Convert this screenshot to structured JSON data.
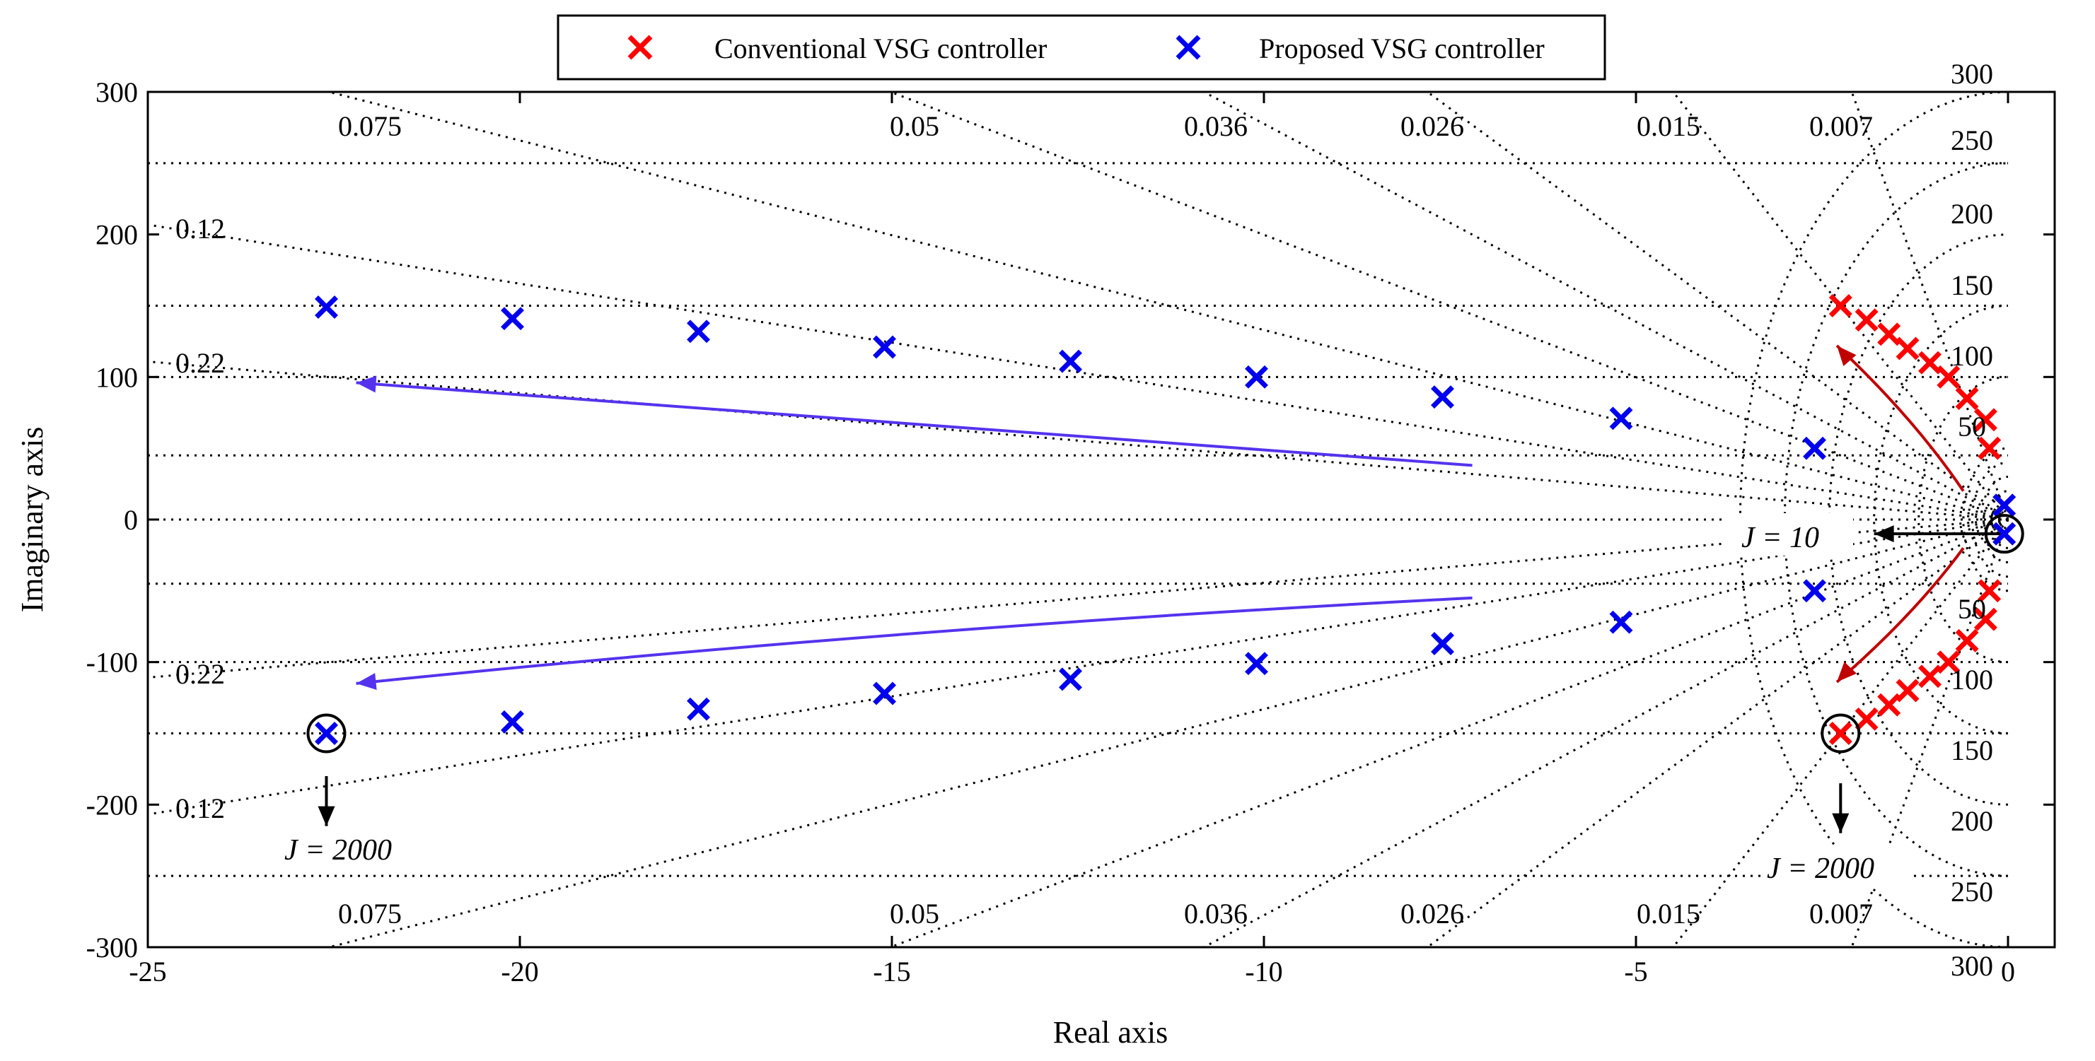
{
  "chart_data": {
    "type": "scatter",
    "title": "",
    "xlabel": "Real axis",
    "ylabel": "Imaginary axis",
    "xlim": [
      -25,
      1.2
    ],
    "ylim": [
      -300,
      300
    ],
    "x_ticks": [
      -25,
      -20,
      -15,
      -10,
      -5,
      0
    ],
    "y_ticks": [
      -300,
      -200,
      -100,
      0,
      100,
      200,
      300
    ],
    "x_tick_labels": [
      "-25",
      "-20",
      "-15",
      "-10",
      "-5",
      "0"
    ],
    "y_tick_labels": [
      "-300",
      "-200",
      "-100",
      "0",
      "100",
      "200",
      "300"
    ],
    "grid": "pzmap (damping ratio and natural frequency)",
    "legend": {
      "placement": "top-center",
      "entries": [
        {
          "name": "Conventional VSG controller",
          "color": "#ff0000",
          "marker": "x"
        },
        {
          "name": "Proposed VSG controller",
          "color": "#0000ee",
          "marker": "x"
        }
      ]
    },
    "series": [
      {
        "name": "Conventional VSG controller",
        "color": "#ff0000",
        "marker": "x",
        "points": [
          [
            -0.05,
            10
          ],
          [
            -0.05,
            -10
          ],
          [
            -0.25,
            50
          ],
          [
            -0.3,
            70
          ],
          [
            -0.55,
            85
          ],
          [
            -0.8,
            100
          ],
          [
            -1.05,
            110
          ],
          [
            -1.35,
            120
          ],
          [
            -1.6,
            130
          ],
          [
            -1.9,
            140
          ],
          [
            -2.25,
            150
          ],
          [
            -0.25,
            -50
          ],
          [
            -0.3,
            -70
          ],
          [
            -0.55,
            -85
          ],
          [
            -0.8,
            -100
          ],
          [
            -1.05,
            -110
          ],
          [
            -1.35,
            -120
          ],
          [
            -1.6,
            -130
          ],
          [
            -1.9,
            -140
          ],
          [
            -2.25,
            -150
          ]
        ]
      },
      {
        "name": "Proposed VSG controller",
        "color": "#0000ee",
        "marker": "x",
        "points": [
          [
            -0.05,
            10
          ],
          [
            -0.05,
            -10
          ],
          [
            -2.6,
            50
          ],
          [
            -5.2,
            71
          ],
          [
            -7.6,
            86
          ],
          [
            -10.1,
            100
          ],
          [
            -12.6,
            111
          ],
          [
            -15.1,
            121
          ],
          [
            -17.6,
            132
          ],
          [
            -20.1,
            141
          ],
          [
            -22.6,
            149
          ],
          [
            -2.6,
            -50
          ],
          [
            -5.2,
            -72
          ],
          [
            -7.6,
            -87
          ],
          [
            -10.1,
            -101
          ],
          [
            -12.6,
            -112
          ],
          [
            -15.1,
            -122
          ],
          [
            -17.6,
            -133
          ],
          [
            -20.1,
            -142
          ],
          [
            -22.6,
            -150
          ]
        ]
      }
    ],
    "damping_ratio_lines": [
      0.007,
      0.015,
      0.026,
      0.036,
      0.05,
      0.075,
      0.12,
      0.22
    ],
    "damping_labels": {
      "top": [
        "0.075",
        "0.05",
        "0.036",
        "0.026",
        "0.015",
        "0.007"
      ],
      "bottom": [
        "0.075",
        "0.05",
        "0.036",
        "0.026",
        "0.015",
        "0.007"
      ],
      "left_upper": [
        "0.12",
        "0.22"
      ],
      "left_lower": [
        "0.22",
        "0.12"
      ]
    },
    "frequency_labels": {
      "upper": [
        "300",
        "250",
        "200",
        "150",
        "100",
        "50"
      ],
      "lower": [
        "50",
        "100",
        "150",
        "200",
        "250",
        "300"
      ]
    },
    "annotations": {
      "j10": "J = 10",
      "j2000_left": "J = 2000",
      "j2000_right": "J = 2000"
    },
    "arrows": [
      {
        "color": "#5533ee",
        "from": [
          -7.2,
          38
        ],
        "to": [
          -22.2,
          96
        ]
      },
      {
        "color": "#5533ee",
        "from": [
          -7.2,
          -55
        ],
        "to": [
          -22.2,
          -115
        ]
      },
      {
        "color": "#c00000",
        "from": [
          -0.6,
          20
        ],
        "to": [
          -2.3,
          122
        ]
      },
      {
        "color": "#c00000",
        "from": [
          -0.6,
          -20
        ],
        "to": [
          -2.3,
          -114
        ]
      },
      {
        "color": "#000000",
        "from": [
          0,
          -10
        ],
        "to": [
          -1.8,
          -10
        ]
      },
      {
        "color": "#000000",
        "from": [
          -22.6,
          -180
        ],
        "to": [
          -22.6,
          -215
        ]
      },
      {
        "color": "#000000",
        "from": [
          -2.25,
          -185
        ],
        "to": [
          -2.25,
          -220
        ]
      }
    ],
    "circled_points": [
      [
        -0.05,
        -10
      ],
      [
        -22.6,
        -150
      ],
      [
        -2.25,
        -150
      ]
    ]
  }
}
